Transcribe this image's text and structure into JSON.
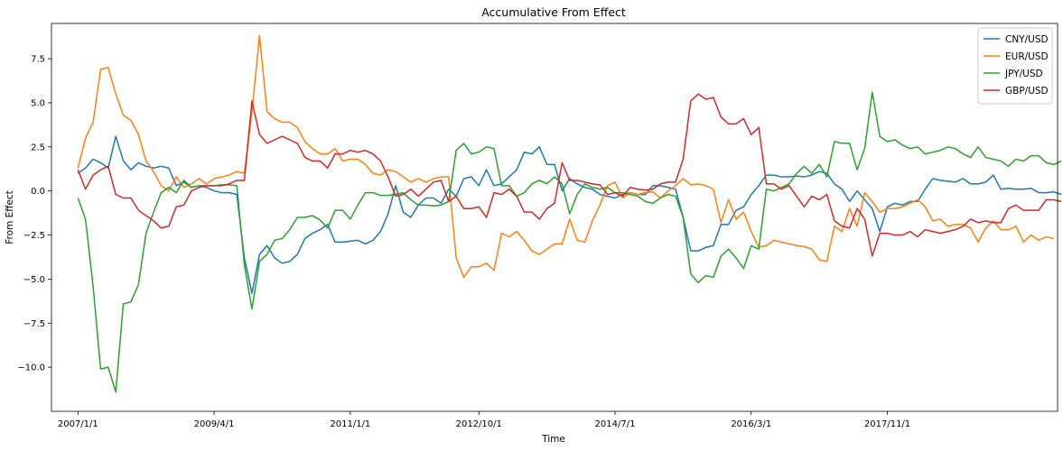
{
  "chart_data": {
    "type": "line",
    "title": "Accumulative From Effect",
    "xlabel": "Time",
    "ylabel": "From Effect",
    "ylim": [
      -12.5,
      9.5
    ],
    "xlim": [
      -3.5,
      129.5
    ],
    "yticks": [
      -10.0,
      -7.5,
      -5.0,
      -2.5,
      0.0,
      2.5,
      5.0,
      7.5
    ],
    "ytick_labels": [
      "−10.0",
      "−7.5",
      "−5.0",
      "−2.5",
      "0.0",
      "2.5",
      "5.0",
      "7.5"
    ],
    "xticks": [
      0,
      18,
      36,
      53,
      71,
      89,
      107
    ],
    "xtick_labels": [
      "2007/1/1",
      "2009/4/1",
      "2011/1/1",
      "2012/10/1",
      "2014/7/1",
      "2016/3/1",
      "2017/11/1"
    ],
    "grid": false,
    "legend_position": "top-right",
    "series": [
      {
        "name": "CNY/USD",
        "color": "#1f77b4",
        "values": [
          1.0,
          1.3,
          1.8,
          1.6,
          1.3,
          3.1,
          1.7,
          1.2,
          1.6,
          1.4,
          1.3,
          1.4,
          1.3,
          0.3,
          0.5,
          0.2,
          0.3,
          0.2,
          0.0,
          -0.1,
          -0.1,
          -0.2,
          -3.8,
          -5.8,
          -3.6,
          -3.1,
          -3.8,
          -4.1,
          -4.0,
          -3.6,
          -2.7,
          -2.4,
          -2.2,
          -1.9,
          -2.9,
          -2.9,
          -2.85,
          -2.8,
          -3.0,
          -2.8,
          -2.3,
          -1.3,
          0.3,
          -1.2,
          -1.5,
          -0.8,
          -0.4,
          -0.4,
          -0.7,
          0.1,
          -0.3,
          0.7,
          0.8,
          0.3,
          1.2,
          0.3,
          0.4,
          0.8,
          1.2,
          2.2,
          2.1,
          2.5,
          1.5,
          1.5,
          0.0,
          0.7,
          0.4,
          0.2,
          0.1,
          -0.2,
          -0.3,
          -0.4,
          -0.2,
          -0.1,
          -0.2,
          -0.2,
          0.3,
          0.3,
          0.2,
          0.1,
          -1.5,
          -3.4,
          -3.4,
          -3.2,
          -3.1,
          -1.9,
          -1.9,
          -1.1,
          -0.9,
          -0.2,
          0.3,
          0.9,
          0.9,
          0.8,
          0.8,
          0.85,
          0.8,
          0.9,
          1.1,
          1.0,
          0.4,
          0.1,
          -0.6,
          0.0,
          -0.5,
          -1.0,
          -2.3,
          -0.9,
          -0.7,
          -0.8,
          -0.6,
          -0.6,
          0.1,
          0.7,
          0.6,
          0.55,
          0.5,
          0.7,
          0.4,
          0.4,
          0.5,
          0.9,
          0.1,
          0.15,
          0.1,
          0.1,
          0.15,
          -0.1,
          -0.1,
          -0.05,
          -0.2
        ]
      },
      {
        "name": "EUR/USD",
        "color": "#ff7f0e",
        "values": [
          1.3,
          3.0,
          3.9,
          6.9,
          7.0,
          5.5,
          4.3,
          4.0,
          3.2,
          1.7,
          1.1,
          0.3,
          0.0,
          0.8,
          0.2,
          0.4,
          0.7,
          0.4,
          0.7,
          0.8,
          0.9,
          1.1,
          1.0,
          4.5,
          8.8,
          4.5,
          4.1,
          3.9,
          3.9,
          3.6,
          2.8,
          2.4,
          2.1,
          2.1,
          2.4,
          1.7,
          1.8,
          1.8,
          1.5,
          1.0,
          0.9,
          1.2,
          1.1,
          0.8,
          0.5,
          0.7,
          0.5,
          0.7,
          0.8,
          0.8,
          -3.8,
          -4.9,
          -4.3,
          -4.3,
          -4.1,
          -4.5,
          -2.4,
          -2.6,
          -2.3,
          -2.8,
          -3.4,
          -3.6,
          -3.3,
          -3.0,
          -3.0,
          -1.6,
          -2.8,
          -2.9,
          -1.7,
          -0.8,
          0.3,
          0.5,
          -0.4,
          -0.1,
          -0.2,
          -0.1,
          -0.05,
          -0.4,
          0.0,
          0.3,
          0.7,
          0.35,
          0.4,
          0.3,
          0.1,
          -1.8,
          -0.5,
          -1.6,
          -1.2,
          -2.3,
          -3.2,
          -3.1,
          -2.8,
          -2.9,
          -3.0,
          -3.1,
          -3.15,
          -3.3,
          -3.9,
          -4.0,
          -2.0,
          -2.3,
          -1.0,
          -2.0,
          -0.1,
          -0.6,
          -1.2,
          -1.0,
          -1.0,
          -0.9,
          -0.7,
          -0.5,
          -0.9,
          -1.7,
          -1.6,
          -2.0,
          -1.9,
          -1.9,
          -2.1,
          -2.9,
          -2.1,
          -1.7,
          -2.2,
          -2.2,
          -2.0,
          -2.9,
          -2.5,
          -2.8,
          -2.6,
          -2.7
        ]
      },
      {
        "name": "JPY/USD",
        "color": "#2ca02c",
        "values": [
          -0.4,
          -1.6,
          -5.4,
          -10.1,
          -10.0,
          -11.4,
          -6.4,
          -6.3,
          -5.3,
          -2.4,
          -1.2,
          -0.1,
          0.2,
          -0.1,
          0.6,
          0.2,
          0.3,
          0.3,
          0.3,
          0.35,
          0.35,
          0.3,
          -4.2,
          -6.7,
          -4.0,
          -3.6,
          -2.8,
          -2.7,
          -2.2,
          -1.5,
          -1.5,
          -1.4,
          -1.65,
          -2.1,
          -1.1,
          -1.1,
          -1.6,
          -0.8,
          -0.1,
          -0.1,
          -0.25,
          -0.25,
          -0.2,
          -0.1,
          -0.5,
          -0.8,
          -0.8,
          -0.85,
          -0.8,
          -0.6,
          2.3,
          2.7,
          2.1,
          2.2,
          2.5,
          2.4,
          0.3,
          0.3,
          -0.3,
          -0.1,
          0.4,
          0.6,
          0.4,
          0.8,
          0.4,
          -1.3,
          -0.2,
          0.4,
          0.2,
          0.1,
          0.2,
          -0.1,
          -0.1,
          -0.2,
          -0.3,
          -0.6,
          -0.7,
          -0.4,
          -0.2,
          -0.3,
          -1.5,
          -4.7,
          -5.2,
          -4.8,
          -4.9,
          -3.7,
          -3.3,
          -3.8,
          -4.4,
          -3.1,
          -3.3,
          0.1,
          0.0,
          0.2,
          0.4,
          1.0,
          1.4,
          1.0,
          1.5,
          0.8,
          2.8,
          2.7,
          2.7,
          1.2,
          2.4,
          5.6,
          3.1,
          2.8,
          2.9,
          2.6,
          2.4,
          2.5,
          2.1,
          2.2,
          2.3,
          2.5,
          2.4,
          2.1,
          1.9,
          2.5,
          1.9,
          1.8,
          1.7,
          1.4,
          1.8,
          1.7,
          2.0,
          2.0,
          1.6,
          1.5,
          1.7
        ]
      },
      {
        "name": "GBP/USD",
        "color": "#d62728",
        "values": [
          1.2,
          0.1,
          0.9,
          1.2,
          1.4,
          -0.2,
          -0.4,
          -0.4,
          -1.1,
          -1.4,
          -1.7,
          -2.1,
          -2.0,
          -0.9,
          -0.8,
          0.0,
          0.2,
          0.3,
          0.3,
          0.3,
          0.4,
          0.6,
          0.6,
          5.1,
          3.2,
          2.7,
          2.9,
          3.1,
          2.9,
          2.7,
          1.9,
          1.7,
          1.7,
          1.3,
          2.1,
          2.1,
          2.3,
          2.2,
          2.3,
          2.1,
          1.7,
          0.8,
          -0.3,
          -0.2,
          0.1,
          -0.3,
          0.1,
          0.5,
          0.6,
          -0.6,
          -0.3,
          -1.0,
          -1.0,
          -0.9,
          -1.5,
          -0.1,
          -0.2,
          0.1,
          -0.3,
          -1.2,
          -1.2,
          -1.6,
          -1.0,
          -0.7,
          1.6,
          0.6,
          0.6,
          0.5,
          0.4,
          0.35,
          -0.2,
          -0.1,
          -0.3,
          0.2,
          0.1,
          0.05,
          0.1,
          0.4,
          0.5,
          0.5,
          1.8,
          5.1,
          5.5,
          5.2,
          5.3,
          4.2,
          3.8,
          3.8,
          4.1,
          3.2,
          3.6,
          0.4,
          0.4,
          0.1,
          0.3,
          -0.3,
          -0.9,
          -0.3,
          -0.5,
          -0.2,
          -1.7,
          -2.0,
          -2.1,
          -1.0,
          -1.6,
          -3.7,
          -2.4,
          -2.4,
          -2.5,
          -2.5,
          -2.3,
          -2.6,
          -2.2,
          -2.3,
          -2.4,
          -2.3,
          -2.2,
          -2.0,
          -1.6,
          -1.8,
          -1.7,
          -1.8,
          -1.8,
          -1.0,
          -0.8,
          -1.1,
          -1.1,
          -1.1,
          -0.5,
          -0.5,
          -0.6
        ]
      }
    ]
  }
}
